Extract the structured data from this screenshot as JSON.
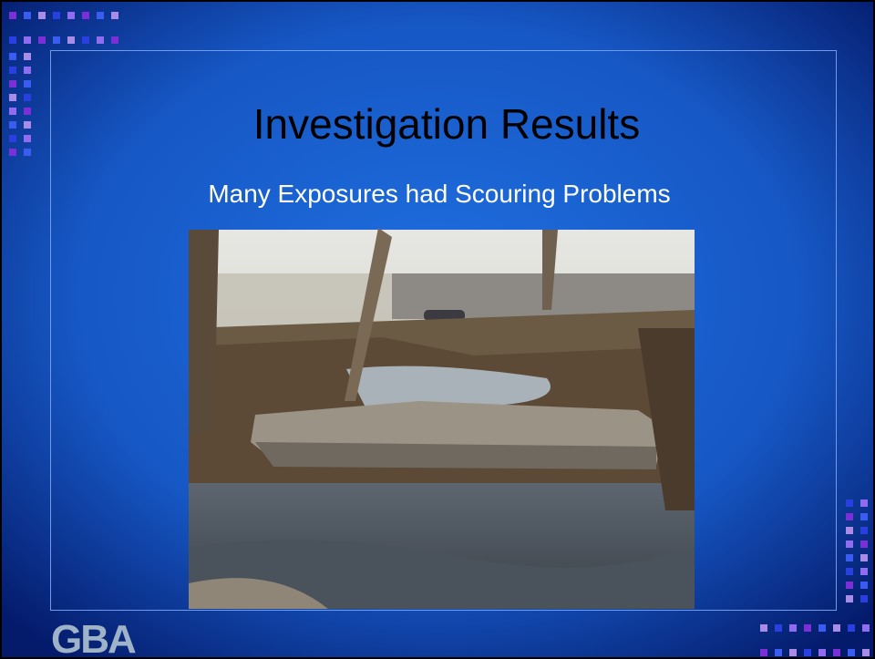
{
  "slide": {
    "title": "Investigation Results",
    "subtitle": "Many Exposures had Scouring Problems",
    "logo": "GBA"
  }
}
